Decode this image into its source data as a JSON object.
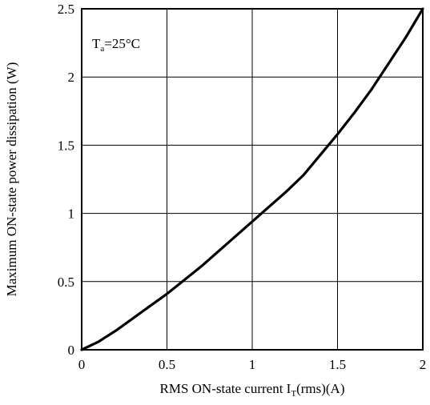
{
  "chart_data": {
    "type": "line",
    "title": "",
    "xlabel": {
      "text": "RMS ON-state current I",
      "subscript": "T",
      "suffix": "(rms)(A)"
    },
    "ylabel": "Maximum ON-state power dissipation (W)",
    "xlim": [
      0,
      2
    ],
    "ylim": [
      0,
      2.5
    ],
    "x_ticks": [
      "0",
      "0.5",
      "1",
      "1.5",
      "2"
    ],
    "y_ticks": [
      "0",
      "0.5",
      "1",
      "1.5",
      "2",
      "2.5"
    ],
    "grid": true,
    "annotation": {
      "base": "T",
      "subscript": "a",
      "text": "=25°C"
    },
    "series": [
      {
        "x": [
          0,
          0.1,
          0.2,
          0.3,
          0.4,
          0.5,
          0.6,
          0.7,
          0.8,
          0.9,
          1.0,
          1.1,
          1.2,
          1.3,
          1.4,
          1.5,
          1.6,
          1.7,
          1.8,
          1.9,
          2.0
        ],
        "y": [
          0,
          0.06,
          0.14,
          0.23,
          0.32,
          0.41,
          0.51,
          0.61,
          0.72,
          0.83,
          0.94,
          1.05,
          1.16,
          1.28,
          1.43,
          1.58,
          1.74,
          1.91,
          2.1,
          2.29,
          2.5
        ]
      }
    ]
  }
}
